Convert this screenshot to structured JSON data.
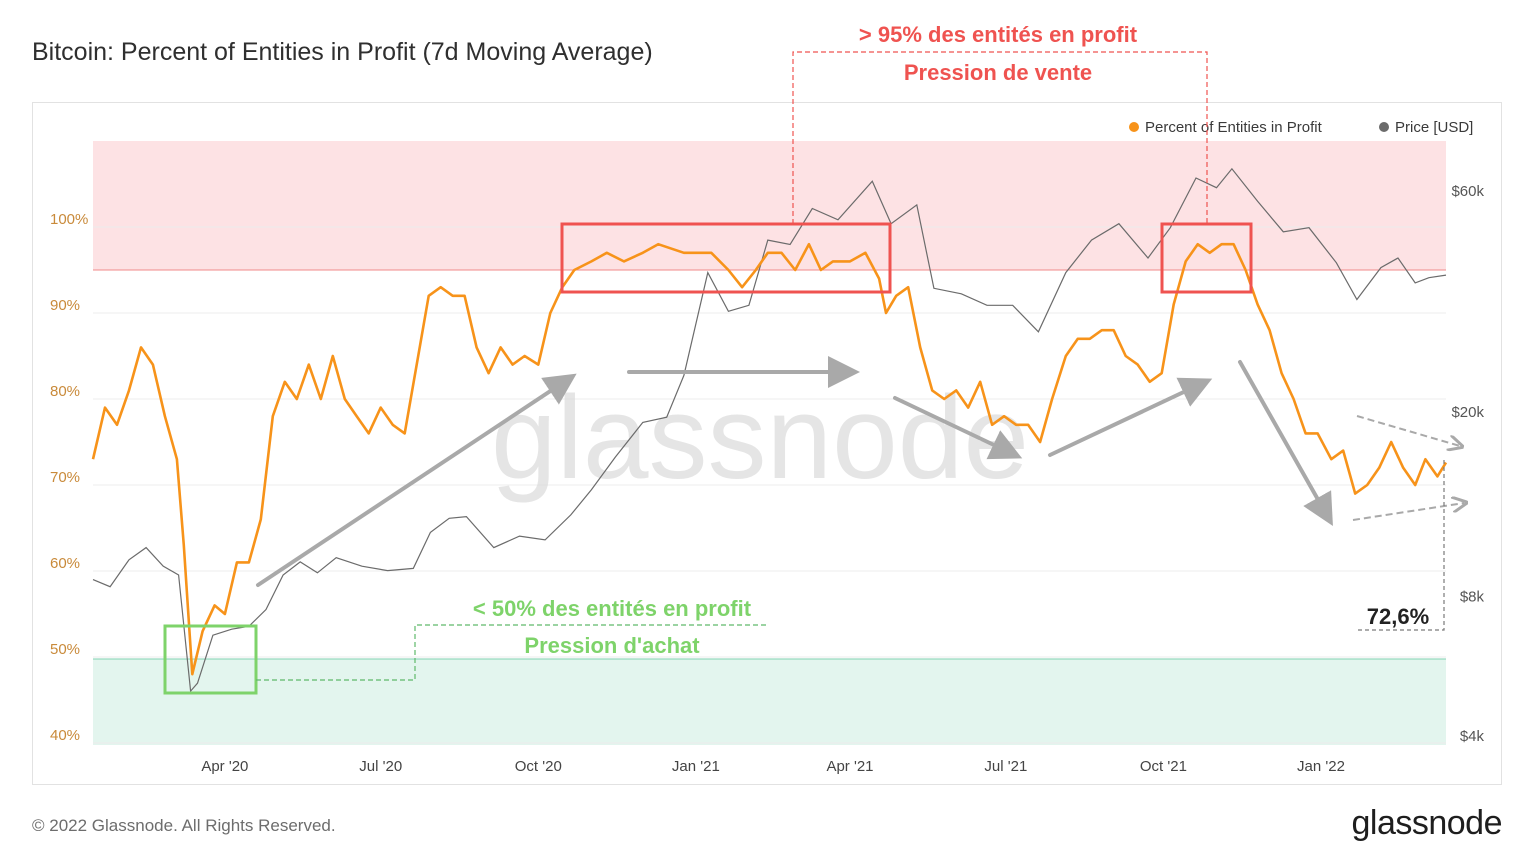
{
  "title": "Bitcoin: Percent of Entities in Profit (7d Moving Average)",
  "footer": {
    "copyright": "© 2022 Glassnode. All Rights Reserved.",
    "logo": "glassnode"
  },
  "watermark": "glassnode",
  "colors": {
    "profit_line": "#f7931a",
    "price_line": "#6b6b6b",
    "sell_zone": "#fde2e4",
    "buy_zone": "#e3f5ee",
    "sell_annotation": "#ef5350",
    "buy_annotation": "#7ed36a",
    "arrows": "#a9a9a9"
  },
  "annotations": {
    "sell_line1": "> 95% des entités en profit",
    "sell_line2": "Pression de vente",
    "buy_line1": "< 50% des entités en profit",
    "buy_line2": "Pression d'achat",
    "current_value": "72,6%"
  },
  "chart_data": {
    "type": "line",
    "title": "Bitcoin: Percent of Entities in Profit (7d Moving Average)",
    "legend": [
      "Percent of Entities in Profit",
      "Price [USD]"
    ],
    "legend_position": "top-right",
    "x_ticks": [
      "Apr '20",
      "Jul '20",
      "Oct '20",
      "Jan '21",
      "Apr '21",
      "Jul '21",
      "Oct '21",
      "Jan '22"
    ],
    "x_range": [
      "2020-01-15",
      "2022-03-15"
    ],
    "y_left": {
      "ticks": [
        "40%",
        "50%",
        "60%",
        "70%",
        "80%",
        "90%",
        "100%"
      ],
      "range": [
        40,
        102
      ]
    },
    "y_right": {
      "ticks": [
        "$4k",
        "$8k",
        "$20k",
        "$60k"
      ],
      "scale": "log",
      "range": [
        4000,
        100000
      ]
    },
    "zones": {
      "sell_above": 95,
      "buy_below": 50
    },
    "series": [
      {
        "name": "Percent of Entities in Profit",
        "unit": "%",
        "points": [
          [
            "2020-01-15",
            73
          ],
          [
            "2020-01-22",
            79
          ],
          [
            "2020-01-29",
            77
          ],
          [
            "2020-02-05",
            81
          ],
          [
            "2020-02-12",
            86
          ],
          [
            "2020-02-19",
            84
          ],
          [
            "2020-02-26",
            78
          ],
          [
            "2020-03-04",
            73
          ],
          [
            "2020-03-08",
            63
          ],
          [
            "2020-03-13",
            48
          ],
          [
            "2020-03-19",
            53
          ],
          [
            "2020-03-26",
            56
          ],
          [
            "2020-04-01",
            55
          ],
          [
            "2020-04-08",
            61
          ],
          [
            "2020-04-15",
            61
          ],
          [
            "2020-04-22",
            66
          ],
          [
            "2020-04-29",
            78
          ],
          [
            "2020-05-06",
            82
          ],
          [
            "2020-05-13",
            80
          ],
          [
            "2020-05-20",
            84
          ],
          [
            "2020-05-27",
            80
          ],
          [
            "2020-06-03",
            85
          ],
          [
            "2020-06-10",
            80
          ],
          [
            "2020-06-17",
            78
          ],
          [
            "2020-06-24",
            76
          ],
          [
            "2020-07-01",
            79
          ],
          [
            "2020-07-08",
            77
          ],
          [
            "2020-07-15",
            76
          ],
          [
            "2020-07-22",
            84
          ],
          [
            "2020-07-29",
            92
          ],
          [
            "2020-08-05",
            93
          ],
          [
            "2020-08-12",
            92
          ],
          [
            "2020-08-19",
            92
          ],
          [
            "2020-08-26",
            86
          ],
          [
            "2020-09-02",
            83
          ],
          [
            "2020-09-09",
            86
          ],
          [
            "2020-09-16",
            84
          ],
          [
            "2020-09-23",
            85
          ],
          [
            "2020-10-01",
            84
          ],
          [
            "2020-10-08",
            90
          ],
          [
            "2020-10-15",
            93
          ],
          [
            "2020-10-22",
            95
          ],
          [
            "2020-11-01",
            96
          ],
          [
            "2020-11-10",
            97
          ],
          [
            "2020-11-20",
            96
          ],
          [
            "2020-12-01",
            97
          ],
          [
            "2020-12-10",
            98
          ],
          [
            "2020-12-25",
            97
          ],
          [
            "2021-01-10",
            97
          ],
          [
            "2021-01-20",
            95
          ],
          [
            "2021-01-28",
            93
          ],
          [
            "2021-02-05",
            95
          ],
          [
            "2021-02-12",
            97
          ],
          [
            "2021-02-20",
            97
          ],
          [
            "2021-02-28",
            95
          ],
          [
            "2021-03-08",
            98
          ],
          [
            "2021-03-15",
            95
          ],
          [
            "2021-03-22",
            96
          ],
          [
            "2021-04-01",
            96
          ],
          [
            "2021-04-10",
            97
          ],
          [
            "2021-04-18",
            94
          ],
          [
            "2021-04-22",
            90
          ],
          [
            "2021-04-28",
            92
          ],
          [
            "2021-05-05",
            93
          ],
          [
            "2021-05-12",
            86
          ],
          [
            "2021-05-19",
            81
          ],
          [
            "2021-05-26",
            80
          ],
          [
            "2021-06-02",
            81
          ],
          [
            "2021-06-09",
            79
          ],
          [
            "2021-06-16",
            82
          ],
          [
            "2021-06-23",
            77
          ],
          [
            "2021-06-30",
            78
          ],
          [
            "2021-07-07",
            77
          ],
          [
            "2021-07-14",
            77
          ],
          [
            "2021-07-21",
            75
          ],
          [
            "2021-07-28",
            80
          ],
          [
            "2021-08-05",
            85
          ],
          [
            "2021-08-12",
            87
          ],
          [
            "2021-08-19",
            87
          ],
          [
            "2021-08-26",
            88
          ],
          [
            "2021-09-02",
            88
          ],
          [
            "2021-09-09",
            85
          ],
          [
            "2021-09-16",
            84
          ],
          [
            "2021-09-23",
            82
          ],
          [
            "2021-09-30",
            83
          ],
          [
            "2021-10-07",
            91
          ],
          [
            "2021-10-14",
            96
          ],
          [
            "2021-10-21",
            98
          ],
          [
            "2021-10-28",
            97
          ],
          [
            "2021-11-04",
            98
          ],
          [
            "2021-11-11",
            98
          ],
          [
            "2021-11-18",
            95
          ],
          [
            "2021-11-25",
            91
          ],
          [
            "2021-12-02",
            88
          ],
          [
            "2021-12-09",
            83
          ],
          [
            "2021-12-16",
            80
          ],
          [
            "2021-12-23",
            76
          ],
          [
            "2021-12-30",
            76
          ],
          [
            "2022-01-07",
            73
          ],
          [
            "2022-01-14",
            74
          ],
          [
            "2022-01-21",
            69
          ],
          [
            "2022-01-28",
            70
          ],
          [
            "2022-02-04",
            72
          ],
          [
            "2022-02-11",
            75
          ],
          [
            "2022-02-18",
            72
          ],
          [
            "2022-02-25",
            70
          ],
          [
            "2022-03-03",
            73
          ],
          [
            "2022-03-10",
            71
          ],
          [
            "2022-03-15",
            72.6
          ]
        ]
      },
      {
        "name": "Price [USD]",
        "unit": "USD",
        "points": [
          [
            "2020-01-15",
            8700
          ],
          [
            "2020-01-25",
            8400
          ],
          [
            "2020-02-05",
            9600
          ],
          [
            "2020-02-15",
            10200
          ],
          [
            "2020-02-25",
            9300
          ],
          [
            "2020-03-05",
            8900
          ],
          [
            "2020-03-12",
            5000
          ],
          [
            "2020-03-16",
            5200
          ],
          [
            "2020-03-25",
            6600
          ],
          [
            "2020-04-05",
            6800
          ],
          [
            "2020-04-15",
            6900
          ],
          [
            "2020-04-25",
            7500
          ],
          [
            "2020-05-05",
            8900
          ],
          [
            "2020-05-15",
            9500
          ],
          [
            "2020-05-25",
            9000
          ],
          [
            "2020-06-05",
            9700
          ],
          [
            "2020-06-20",
            9300
          ],
          [
            "2020-07-05",
            9100
          ],
          [
            "2020-07-20",
            9200
          ],
          [
            "2020-07-30",
            11000
          ],
          [
            "2020-08-10",
            11800
          ],
          [
            "2020-08-20",
            11900
          ],
          [
            "2020-09-05",
            10200
          ],
          [
            "2020-09-20",
            10800
          ],
          [
            "2020-10-05",
            10600
          ],
          [
            "2020-10-20",
            12000
          ],
          [
            "2020-11-01",
            13600
          ],
          [
            "2020-11-15",
            16000
          ],
          [
            "2020-12-01",
            19000
          ],
          [
            "2020-12-15",
            19500
          ],
          [
            "2020-12-25",
            24000
          ],
          [
            "2021-01-08",
            40000
          ],
          [
            "2021-01-20",
            33000
          ],
          [
            "2021-02-01",
            34000
          ],
          [
            "2021-02-12",
            47000
          ],
          [
            "2021-02-25",
            46000
          ],
          [
            "2021-03-10",
            55000
          ],
          [
            "2021-03-25",
            52000
          ],
          [
            "2021-04-14",
            63000
          ],
          [
            "2021-04-25",
            51000
          ],
          [
            "2021-05-10",
            56000
          ],
          [
            "2021-05-20",
            37000
          ],
          [
            "2021-06-05",
            36000
          ],
          [
            "2021-06-20",
            34000
          ],
          [
            "2021-07-05",
            34000
          ],
          [
            "2021-07-20",
            29800
          ],
          [
            "2021-08-05",
            40000
          ],
          [
            "2021-08-20",
            47000
          ],
          [
            "2021-09-05",
            51000
          ],
          [
            "2021-09-22",
            43000
          ],
          [
            "2021-10-05",
            50000
          ],
          [
            "2021-10-20",
            64000
          ],
          [
            "2021-11-01",
            61000
          ],
          [
            "2021-11-10",
            67000
          ],
          [
            "2021-11-25",
            57000
          ],
          [
            "2021-12-10",
            49000
          ],
          [
            "2021-12-25",
            50000
          ],
          [
            "2022-01-10",
            42000
          ],
          [
            "2022-01-22",
            35000
          ],
          [
            "2022-02-05",
            41000
          ],
          [
            "2022-02-15",
            43000
          ],
          [
            "2022-02-25",
            38000
          ],
          [
            "2022-03-05",
            39000
          ],
          [
            "2022-03-15",
            39500
          ]
        ]
      }
    ]
  }
}
